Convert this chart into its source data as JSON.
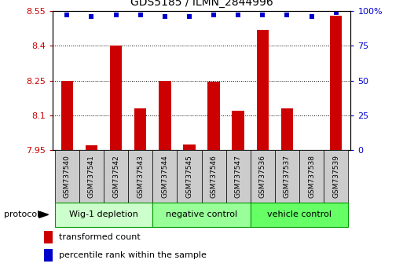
{
  "title": "GDS5185 / ILMN_2844996",
  "samples": [
    "GSM737540",
    "GSM737541",
    "GSM737542",
    "GSM737543",
    "GSM737544",
    "GSM737545",
    "GSM737546",
    "GSM737547",
    "GSM737536",
    "GSM737537",
    "GSM737538",
    "GSM737539"
  ],
  "transformed_count": [
    8.25,
    7.97,
    8.4,
    8.13,
    8.25,
    7.975,
    8.245,
    8.12,
    8.47,
    8.13,
    7.93,
    8.53
  ],
  "percentile_rank": [
    97,
    96,
    97,
    97,
    96,
    96,
    97,
    97,
    97,
    97,
    96,
    99
  ],
  "ylim_left": [
    7.95,
    8.55
  ],
  "ylim_right": [
    0,
    100
  ],
  "yticks_left": [
    7.95,
    8.1,
    8.25,
    8.4,
    8.55
  ],
  "yticks_right": [
    0,
    25,
    50,
    75,
    100
  ],
  "ytick_labels_left": [
    "7.95",
    "8.1",
    "8.25",
    "8.4",
    "8.55"
  ],
  "ytick_labels_right": [
    "0",
    "25",
    "50",
    "75",
    "100%"
  ],
  "groups": [
    {
      "label": "Wig-1 depletion",
      "start": 0,
      "end": 4,
      "color": "#ccffcc"
    },
    {
      "label": "negative control",
      "start": 4,
      "end": 8,
      "color": "#99ff99"
    },
    {
      "label": "vehicle control",
      "start": 8,
      "end": 12,
      "color": "#66ff66"
    }
  ],
  "bar_color": "#cc0000",
  "dot_color": "#0000cc",
  "bar_width": 0.5,
  "grid_color": "#000000",
  "tick_label_color_left": "#cc0000",
  "tick_label_color_right": "#0000cc",
  "protocol_label": "protocol",
  "legend_bar_label": "transformed count",
  "legend_dot_label": "percentile rank within the sample",
  "xticklabel_bg": "#cccccc",
  "group_border_color": "#009900"
}
